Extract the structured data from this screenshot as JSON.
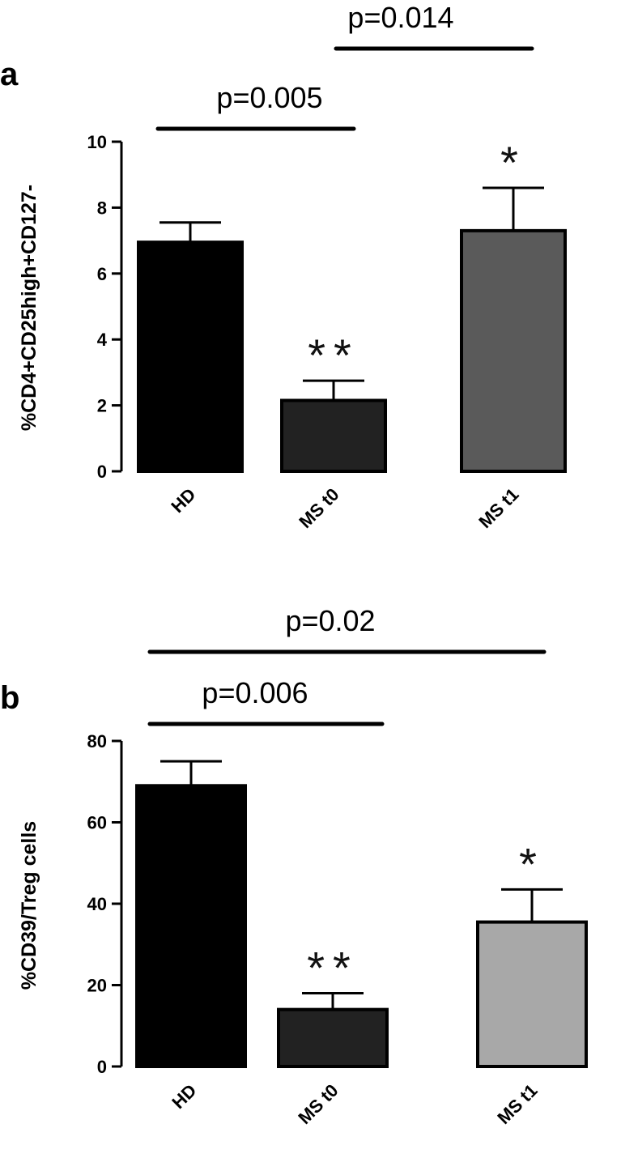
{
  "chart_data": [
    {
      "type": "bar",
      "panel": "a",
      "categories": [
        "HD",
        "MS t0",
        "MS t1"
      ],
      "values": [
        6.95,
        2.15,
        7.3
      ],
      "errors": [
        0.6,
        0.6,
        1.3
      ],
      "ylabel": "%CD4+CD25high+CD127-",
      "ylim": [
        0,
        10
      ],
      "yticks": [
        "0",
        "2",
        "4",
        "6",
        "8",
        "10"
      ],
      "bar_colors": [
        "#000000",
        "#222222",
        "#5a5a5a"
      ],
      "significance": [
        "",
        "**",
        "*"
      ],
      "comparisons": [
        {
          "label": "p=0.005",
          "from": "HD",
          "to": "MS t0"
        },
        {
          "label": "p=0.014",
          "from": "MS t0",
          "to": "MS t1"
        }
      ]
    },
    {
      "type": "bar",
      "panel": "b",
      "categories": [
        "HD",
        "MS t0",
        "MS t1"
      ],
      "values": [
        69,
        14,
        35.5
      ],
      "errors": [
        6,
        4,
        8
      ],
      "ylabel": "%CD39/Treg cells",
      "ylim": [
        0,
        80
      ],
      "yticks": [
        "0",
        "20",
        "40",
        "60",
        "80"
      ],
      "bar_colors": [
        "#000000",
        "#222222",
        "#a8a8a8"
      ],
      "significance": [
        "",
        "**",
        "*"
      ],
      "comparisons": [
        {
          "label": "p=0.006",
          "from": "HD",
          "to": "MS t0"
        },
        {
          "label": "p=0.02",
          "from": "HD",
          "to": "MS t1"
        }
      ]
    }
  ]
}
